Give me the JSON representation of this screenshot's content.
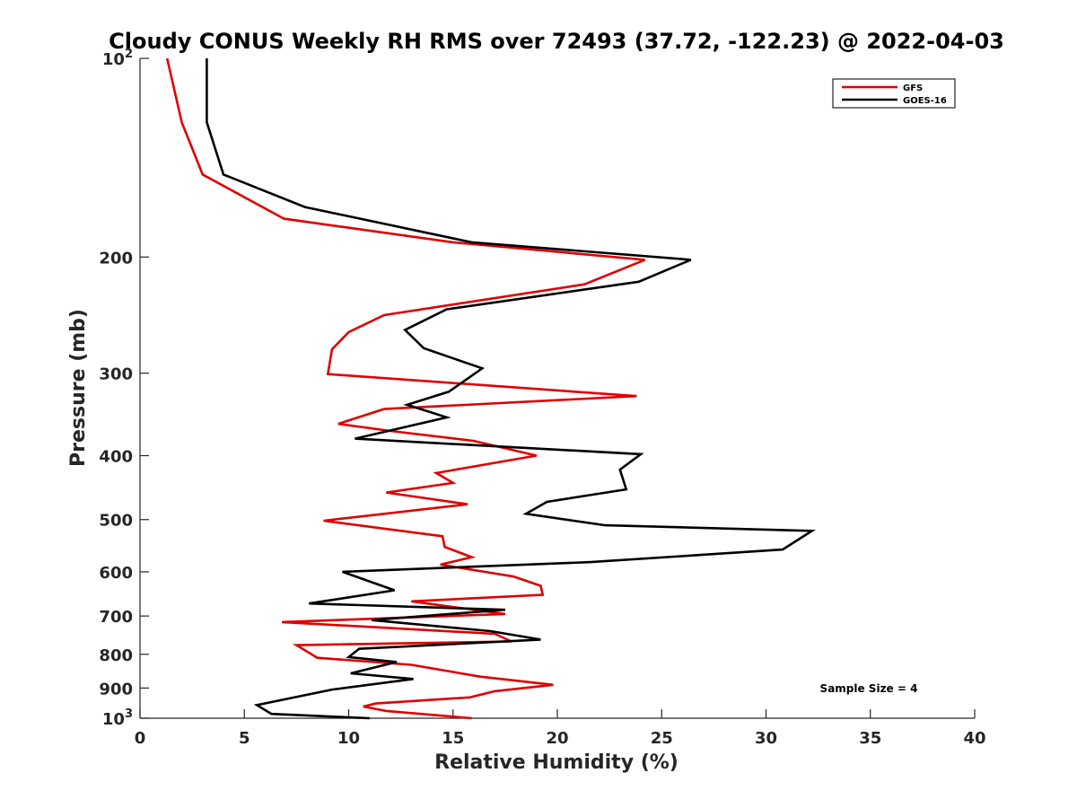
{
  "chart_data": {
    "type": "line",
    "title": "Cloudy CONUS Weekly RH RMS over 72493 (37.72, -122.23) @ 2022-04-03",
    "xlabel": "Relative Humidity (%)",
    "ylabel": "Pressure (mb)",
    "xlim": [
      0,
      40
    ],
    "ylim": [
      100,
      1000
    ],
    "yscale": "log",
    "yreversed": true,
    "xticks": [
      "0",
      "5",
      "10",
      "15",
      "20",
      "25",
      "30",
      "35",
      "40"
    ],
    "yticks": [
      {
        "value": 100,
        "label": "10",
        "sup": "2"
      },
      {
        "value": 200,
        "label": "200",
        "sup": ""
      },
      {
        "value": 300,
        "label": "300",
        "sup": ""
      },
      {
        "value": 400,
        "label": "400",
        "sup": ""
      },
      {
        "value": 500,
        "label": "500",
        "sup": ""
      },
      {
        "value": 600,
        "label": "600",
        "sup": ""
      },
      {
        "value": 700,
        "label": "700",
        "sup": ""
      },
      {
        "value": 800,
        "label": "800",
        "sup": ""
      },
      {
        "value": 900,
        "label": "900",
        "sup": ""
      },
      {
        "value": 1000,
        "label": "10",
        "sup": "3"
      }
    ],
    "grid": false,
    "legend": "top-right",
    "annotation": "Sample Size = 4",
    "series": [
      {
        "name": "GFS",
        "color": "#e00000",
        "points": [
          [
            1.3,
            100
          ],
          [
            2.0,
            125
          ],
          [
            3.0,
            150
          ],
          [
            6.9,
            175
          ],
          [
            15.0,
            190
          ],
          [
            24.2,
            202
          ],
          [
            21.3,
            220
          ],
          [
            11.7,
            245
          ],
          [
            10.0,
            260
          ],
          [
            9.2,
            276
          ],
          [
            9.0,
            301
          ],
          [
            23.8,
            325
          ],
          [
            11.7,
            340
          ],
          [
            9.5,
            358
          ],
          [
            12.0,
            367
          ],
          [
            16.0,
            380
          ],
          [
            19.0,
            400
          ],
          [
            14.2,
            425
          ],
          [
            15.0,
            440
          ],
          [
            11.8,
            455
          ],
          [
            15.7,
            474
          ],
          [
            8.8,
            502
          ],
          [
            14.5,
            530
          ],
          [
            14.6,
            550
          ],
          [
            15.9,
            570
          ],
          [
            14.4,
            585
          ],
          [
            16.5,
            600
          ],
          [
            17.9,
            610
          ],
          [
            19.2,
            630
          ],
          [
            19.3,
            650
          ],
          [
            13.0,
            665
          ],
          [
            17.5,
            695
          ],
          [
            6.8,
            715
          ],
          [
            17.0,
            745
          ],
          [
            17.8,
            765
          ],
          [
            7.5,
            775
          ],
          [
            8.5,
            810
          ],
          [
            13.0,
            830
          ],
          [
            16.3,
            865
          ],
          [
            19.8,
            890
          ],
          [
            17.0,
            910
          ],
          [
            15.8,
            930
          ],
          [
            11.3,
            950
          ],
          [
            10.7,
            960
          ],
          [
            11.8,
            975
          ],
          [
            15.9,
            1000
          ]
        ]
      },
      {
        "name": "GOES-16",
        "color": "#000000",
        "points": [
          [
            3.2,
            100
          ],
          [
            3.2,
            125
          ],
          [
            4.0,
            150
          ],
          [
            7.9,
            168
          ],
          [
            15.9,
            190
          ],
          [
            26.4,
            202
          ],
          [
            23.9,
            218
          ],
          [
            14.7,
            240
          ],
          [
            12.7,
            258
          ],
          [
            13.6,
            275
          ],
          [
            16.4,
            295
          ],
          [
            14.8,
            320
          ],
          [
            12.8,
            335
          ],
          [
            14.7,
            350
          ],
          [
            10.3,
            377
          ],
          [
            24.0,
            398
          ],
          [
            23.0,
            420
          ],
          [
            23.3,
            450
          ],
          [
            19.5,
            470
          ],
          [
            18.5,
            490
          ],
          [
            22.3,
            510
          ],
          [
            32.2,
            520
          ],
          [
            30.8,
            555
          ],
          [
            21.6,
            580
          ],
          [
            9.7,
            600
          ],
          [
            12.2,
            640
          ],
          [
            8.1,
            670
          ],
          [
            17.5,
            685
          ],
          [
            11.1,
            710
          ],
          [
            16.8,
            738
          ],
          [
            19.2,
            760
          ],
          [
            10.5,
            785
          ],
          [
            10.0,
            808
          ],
          [
            12.3,
            822
          ],
          [
            10.1,
            855
          ],
          [
            13.1,
            872
          ],
          [
            9.2,
            905
          ],
          [
            5.6,
            955
          ],
          [
            6.3,
            985
          ],
          [
            11.0,
            1000
          ]
        ]
      }
    ]
  }
}
